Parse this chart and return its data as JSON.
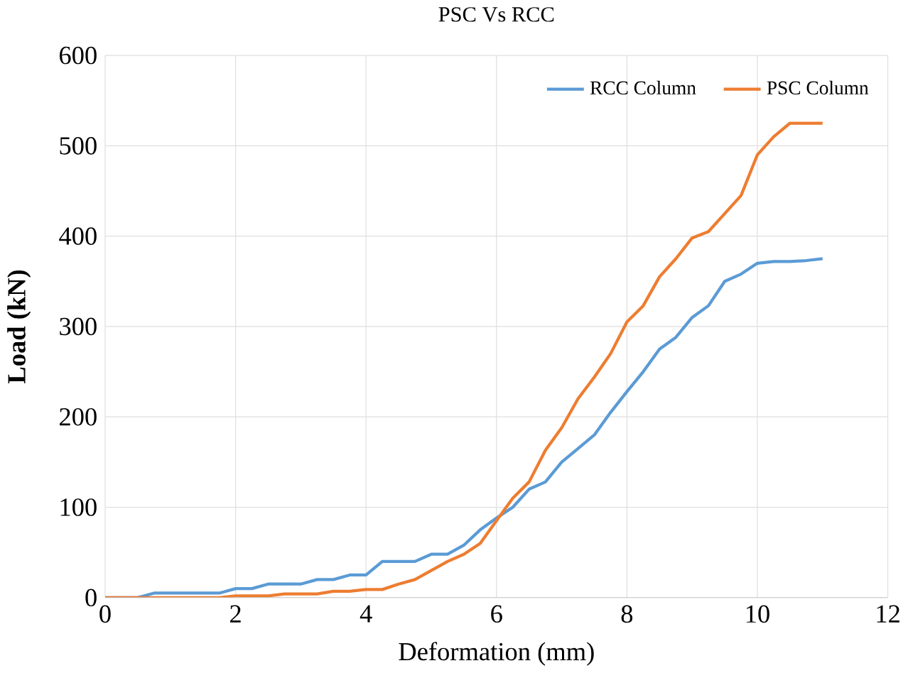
{
  "chart_data": {
    "type": "line",
    "title": "PSC Vs RCC",
    "xlabel": "Deformation (mm)",
    "ylabel": "**Load (kN)**",
    "x": [
      0,
      0.25,
      0.5,
      0.75,
      1,
      1.25,
      1.5,
      1.75,
      2,
      2.25,
      2.5,
      2.75,
      3,
      3.25,
      3.5,
      3.75,
      4,
      4.25,
      4.5,
      4.75,
      5,
      5.25,
      5.5,
      5.75,
      6,
      6.25,
      6.5,
      6.75,
      7,
      7.25,
      7.5,
      7.75,
      8,
      8.25,
      8.5,
      8.75,
      9,
      9.25,
      9.5,
      9.75,
      10,
      10.25,
      10.5,
      10.75,
      11
    ],
    "series": [
      {
        "name": "RCC Column",
        "color": "#5b9bd5",
        "values": [
          0,
          0,
          0,
          5,
          5,
          5,
          5,
          5,
          10,
          10,
          15,
          15,
          15,
          20,
          20,
          25,
          25,
          40,
          40,
          40,
          48,
          48,
          58,
          75,
          88,
          100,
          120,
          128,
          150,
          165,
          180,
          205,
          228,
          250,
          275,
          288,
          310,
          323,
          350,
          358,
          370,
          372,
          372,
          373,
          375
        ]
      },
      {
        "name": "PSC Column",
        "color": "#ed7d31",
        "values": [
          0,
          0,
          0,
          0,
          0,
          0,
          0,
          0,
          2,
          2,
          2,
          4,
          4,
          4,
          7,
          7,
          9,
          9,
          15,
          20,
          30,
          40,
          48,
          60,
          85,
          110,
          128,
          163,
          188,
          220,
          244,
          270,
          305,
          323,
          355,
          375,
          398,
          405,
          425,
          445,
          490,
          510,
          525,
          525,
          525
        ]
      }
    ],
    "xlim": [
      0,
      12
    ],
    "xticks": [
      0,
      2,
      4,
      6,
      8,
      10,
      12
    ],
    "ylim": [
      0,
      600
    ],
    "yticks": [
      0,
      100,
      200,
      300,
      400,
      500,
      600
    ],
    "grid": true,
    "legend": "top right",
    "marker": "none",
    "line_style": "solid"
  }
}
